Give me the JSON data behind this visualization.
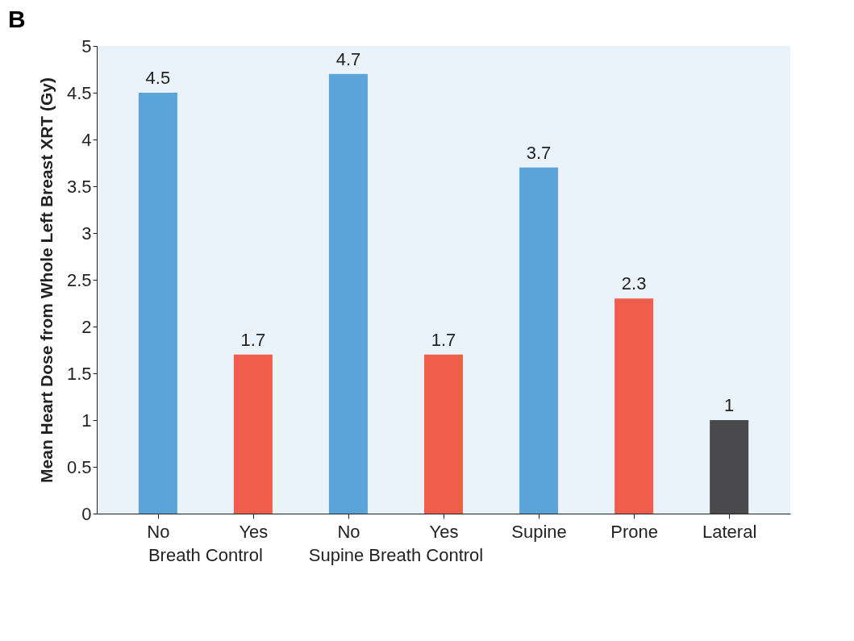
{
  "chart_data": {
    "type": "bar",
    "title": "B",
    "ylabel": "Mean Heart Dose from Whole Left Breast  XRT (Gy)",
    "categories": [
      "No",
      "Yes",
      "No",
      "Yes",
      "Supine",
      "Prone",
      "Lateral"
    ],
    "values": [
      4.5,
      1.7,
      4.7,
      1.7,
      3.7,
      2.3,
      1
    ],
    "colors": [
      "#5ba3d9",
      "#ef5e4a",
      "#5ba3d9",
      "#ef5e4a",
      "#5ba3d9",
      "#ef5e4a",
      "#4a4a4d"
    ],
    "ylim": [
      0,
      5
    ],
    "yticks": [
      0,
      0.5,
      1,
      1.5,
      2,
      2.5,
      3,
      3.5,
      4,
      4.5,
      5
    ],
    "data_labels": true,
    "annotations": [
      "Breath Control",
      "Supine Breath Control"
    ]
  }
}
